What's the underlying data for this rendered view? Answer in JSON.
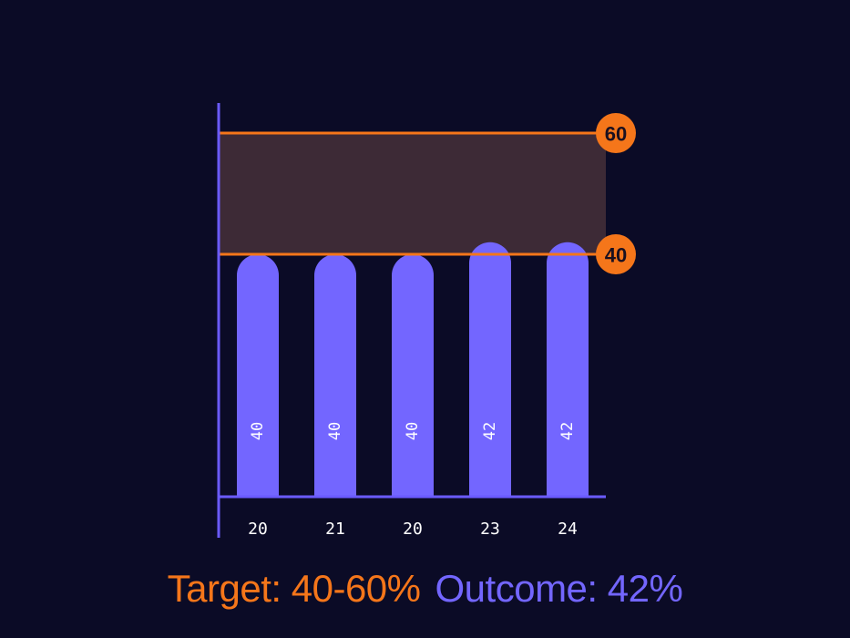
{
  "chart_data": {
    "type": "bar",
    "categories": [
      "20",
      "21",
      "20",
      "23",
      "24"
    ],
    "values": [
      40,
      40,
      40,
      42,
      42
    ],
    "ylim": [
      0,
      60
    ],
    "target_band": {
      "low": 40,
      "high": 60,
      "labels": [
        "40",
        "60"
      ]
    },
    "grid": false,
    "colors": {
      "bar": "#7366ff",
      "axis": "#6b5bff",
      "target": "#f5761a",
      "band": "#3d2a36",
      "background": "#0b0b26"
    }
  },
  "caption": {
    "target": "Target: 40-60%",
    "outcome": "Outcome: 42%"
  }
}
